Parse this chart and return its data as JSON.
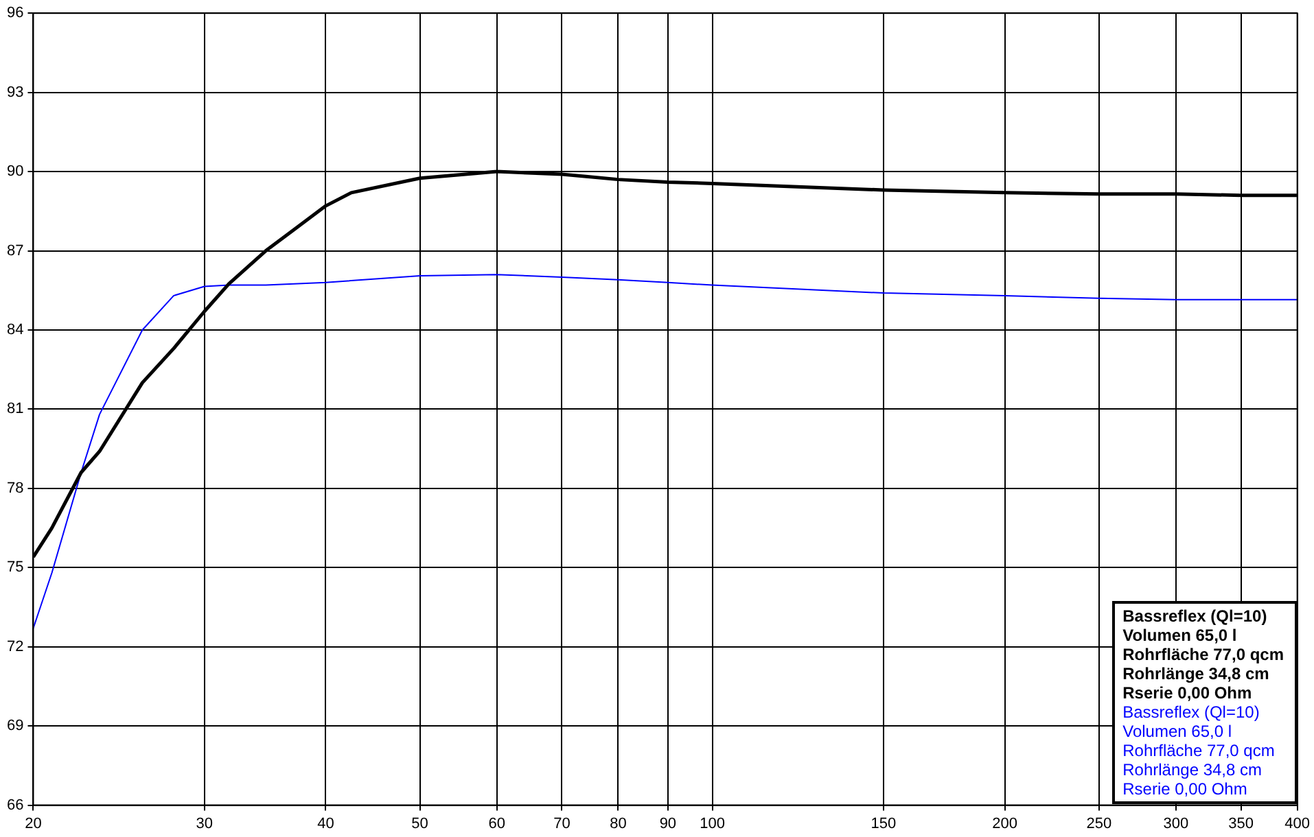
{
  "chart_data": {
    "type": "line",
    "log": "x",
    "grid": true,
    "legend": false,
    "marker": "none",
    "line_style": "solid",
    "xlim": [
      20,
      400
    ],
    "xticks": [
      20,
      30,
      40,
      50,
      60,
      70,
      80,
      90,
      100,
      150,
      200,
      250,
      300,
      350,
      400
    ],
    "ylim": [
      66,
      96
    ],
    "yticks": [
      66,
      69,
      72,
      75,
      78,
      81,
      84,
      87,
      90,
      93,
      96
    ],
    "series": [
      {
        "color": "#000000",
        "x": [
          20,
          20.9,
          22.4,
          23.4,
          25.9,
          27.9,
          30,
          31.8,
          34.7,
          37.1,
          40,
          42.5,
          50,
          60,
          70,
          80,
          90,
          100,
          150,
          200,
          250,
          300,
          350,
          400
        ],
        "values": [
          75.4,
          76.5,
          78.6,
          79.4,
          82.0,
          83.3,
          84.7,
          85.75,
          87.0,
          87.8,
          88.7,
          89.2,
          89.75,
          90.0,
          89.9,
          89.7,
          89.6,
          89.55,
          89.3,
          89.2,
          89.15,
          89.15,
          89.1,
          89.1
        ]
      },
      {
        "color": "#0000ff",
        "x": [
          20,
          20.9,
          22.4,
          23.4,
          25.9,
          27.9,
          30,
          31.8,
          34.7,
          40,
          50,
          60,
          70,
          80,
          90,
          100,
          150,
          200,
          250,
          300,
          350,
          400
        ],
        "values": [
          72.7,
          74.8,
          78.6,
          80.8,
          84.0,
          85.3,
          85.65,
          85.7,
          85.7,
          85.8,
          86.05,
          86.1,
          86.0,
          85.9,
          85.8,
          85.7,
          85.4,
          85.3,
          85.2,
          85.15,
          85.15,
          85.15
        ]
      }
    ],
    "annotations": [
      "Bassreflex (Ql=10)",
      "Volumen 65,0 l",
      "Rohrfläche 77,0 qcm",
      "Rohrlänge 34,8 cm",
      "Rserie 0,00 Ohm",
      "Bassreflex (Ql=10)",
      "Volumen 65,0 l",
      "Rohrfläche 77,0 qcm",
      "Rohrlänge 34,8 cm",
      "Rserie 0,00 Ohm"
    ]
  }
}
